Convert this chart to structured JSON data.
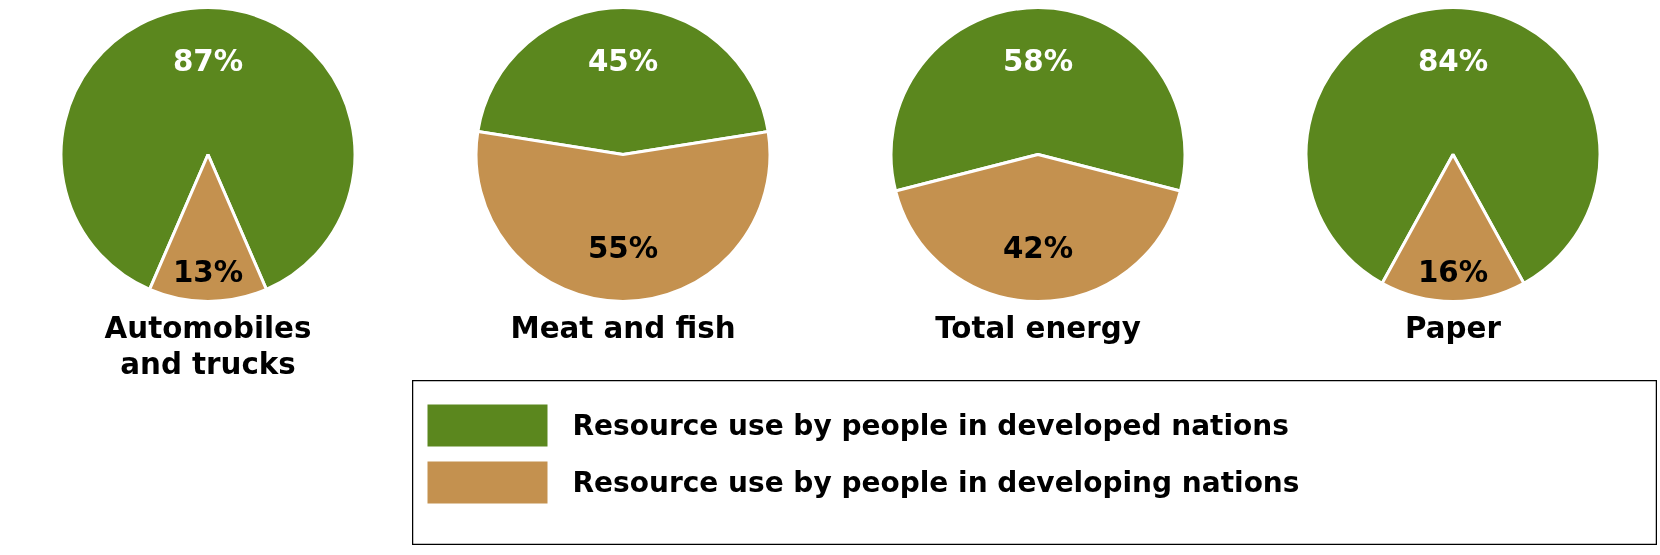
{
  "chart_data": [
    {
      "type": "pie",
      "title": "Automobiles and trucks",
      "categories": [
        "Resource use by people in developed nations",
        "Resource use by people in developing nations"
      ],
      "values": [
        87,
        13
      ],
      "value_labels": [
        "87%",
        "13%"
      ],
      "colors": [
        "#5b871e",
        "#c4914f"
      ],
      "legend": "bottom"
    },
    {
      "type": "pie",
      "title": "Meat and fish",
      "categories": [
        null,
        null
      ],
      "values": [
        45,
        55
      ],
      "value_labels": [
        "45%",
        "55%"
      ],
      "colors": [
        "#5b871e",
        "#c4914f"
      ]
    },
    {
      "type": "pie",
      "title": "Total energy",
      "categories": [
        null,
        null
      ],
      "values": [
        58,
        42
      ],
      "value_labels": [
        "58%",
        "42%"
      ],
      "colors": [
        "#5b871e",
        "#c4914f"
      ]
    },
    {
      "type": "pie",
      "title": "Paper",
      "categories": [
        null,
        null
      ],
      "values": [
        84,
        16
      ],
      "value_labels": [
        "84%",
        "16%"
      ],
      "colors": [
        "#5b871e",
        "#c4914f"
      ]
    }
  ]
}
